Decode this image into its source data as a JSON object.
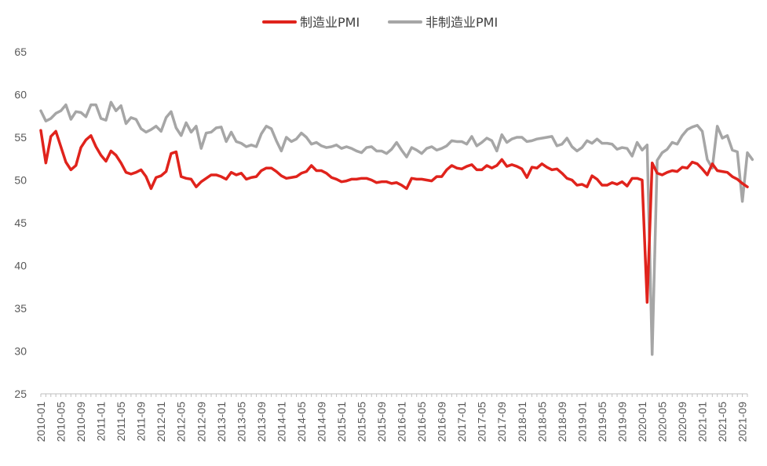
{
  "chart_data": {
    "type": "line",
    "legend_position": "top-center",
    "grid": false,
    "ylim": [
      25,
      65
    ],
    "yticks": [
      25,
      30,
      35,
      40,
      45,
      50,
      55,
      60,
      65
    ],
    "xtick_labels": [
      "2010-01",
      "2010-05",
      "2010-09",
      "2011-01",
      "2011-05",
      "2011-09",
      "2012-01",
      "2012-05",
      "2012-09",
      "2013-01",
      "2013-05",
      "2013-09",
      "2014-01",
      "2014-05",
      "2014-09",
      "2015-01",
      "2015-05",
      "2015-09",
      "2016-01",
      "2016-05",
      "2016-09",
      "2017-01",
      "2017-05",
      "2017-09",
      "2018-01",
      "2018-05",
      "2018-09",
      "2019-01",
      "2019-05",
      "2019-09",
      "2020-01",
      "2020-05",
      "2020-09",
      "2021-01",
      "2021-05",
      "2021-09"
    ],
    "x_start": "2010-01",
    "series": [
      {
        "name": "制造业PMI",
        "color": "#e0231c",
        "values": [
          55.8,
          52.0,
          55.1,
          55.7,
          53.9,
          52.1,
          51.2,
          51.7,
          53.8,
          54.7,
          55.2,
          53.9,
          52.9,
          52.2,
          53.4,
          52.9,
          52.0,
          50.9,
          50.7,
          50.9,
          51.2,
          50.4,
          49.0,
          50.3,
          50.5,
          51.0,
          53.1,
          53.3,
          50.4,
          50.2,
          50.1,
          49.2,
          49.8,
          50.2,
          50.6,
          50.6,
          50.4,
          50.1,
          50.9,
          50.6,
          50.8,
          50.1,
          50.3,
          50.4,
          51.1,
          51.4,
          51.4,
          51.0,
          50.5,
          50.2,
          50.3,
          50.4,
          50.8,
          51.0,
          51.7,
          51.1,
          51.1,
          50.8,
          50.3,
          50.1,
          49.8,
          49.9,
          50.1,
          50.1,
          50.2,
          50.2,
          50.0,
          49.7,
          49.8,
          49.8,
          49.6,
          49.7,
          49.4,
          49.0,
          50.2,
          50.1,
          50.1,
          50.0,
          49.9,
          50.4,
          50.4,
          51.2,
          51.7,
          51.4,
          51.3,
          51.6,
          51.8,
          51.2,
          51.2,
          51.7,
          51.4,
          51.7,
          52.4,
          51.6,
          51.8,
          51.6,
          51.3,
          50.3,
          51.5,
          51.4,
          51.9,
          51.5,
          51.2,
          51.3,
          50.8,
          50.2,
          50.0,
          49.4,
          49.5,
          49.2,
          50.5,
          50.1,
          49.4,
          49.4,
          49.7,
          49.5,
          49.8,
          49.3,
          50.2,
          50.2,
          50.0,
          35.7,
          52.0,
          50.8,
          50.6,
          50.9,
          51.1,
          51.0,
          51.5,
          51.4,
          52.1,
          51.9,
          51.3,
          50.6,
          51.9,
          51.1,
          51.0,
          50.9,
          50.4,
          50.1,
          49.6,
          49.2
        ]
      },
      {
        "name": "非制造业PMI",
        "color": "#a6a6a6",
        "values": [
          58.1,
          56.9,
          57.2,
          57.8,
          58.1,
          58.8,
          57.1,
          58.0,
          57.9,
          57.4,
          58.8,
          58.8,
          57.2,
          57.0,
          59.1,
          58.1,
          58.7,
          56.6,
          57.3,
          57.1,
          56.0,
          55.6,
          55.9,
          56.3,
          55.7,
          57.3,
          58.0,
          56.1,
          55.2,
          56.7,
          55.6,
          56.3,
          53.7,
          55.5,
          55.6,
          56.1,
          56.2,
          54.5,
          55.6,
          54.5,
          54.3,
          53.9,
          54.1,
          53.9,
          55.4,
          56.3,
          56.0,
          54.6,
          53.4,
          55.0,
          54.5,
          54.8,
          55.5,
          55.0,
          54.2,
          54.4,
          54.0,
          53.8,
          53.9,
          54.1,
          53.7,
          53.9,
          53.7,
          53.4,
          53.2,
          53.8,
          53.9,
          53.4,
          53.4,
          53.1,
          53.6,
          54.4,
          53.5,
          52.7,
          53.8,
          53.5,
          53.1,
          53.7,
          53.9,
          53.5,
          53.7,
          54.0,
          54.6,
          54.5,
          54.5,
          54.2,
          55.1,
          54.0,
          54.4,
          54.9,
          54.6,
          53.4,
          55.3,
          54.4,
          54.8,
          55.0,
          55.0,
          54.5,
          54.6,
          54.8,
          54.9,
          55.0,
          55.1,
          54.0,
          54.2,
          54.9,
          53.9,
          53.4,
          53.8,
          54.6,
          54.3,
          54.8,
          54.3,
          54.3,
          54.2,
          53.6,
          53.8,
          53.7,
          52.8,
          54.4,
          53.5,
          54.1,
          29.6,
          52.3,
          53.2,
          53.6,
          54.4,
          54.2,
          55.2,
          55.9,
          56.2,
          56.4,
          55.7,
          52.4,
          51.4,
          56.3,
          54.9,
          55.2,
          53.5,
          53.3,
          47.5,
          53.2,
          52.4
        ]
      }
    ]
  }
}
